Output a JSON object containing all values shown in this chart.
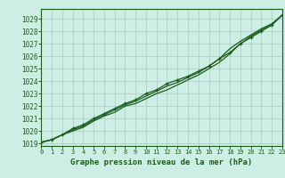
{
  "title": "Graphe pression niveau de la mer (hPa)",
  "background_color": "#cceee4",
  "grid_color": "#b0c8c0",
  "line_color": "#1a5c1a",
  "x_labels": [
    "0",
    "1",
    "2",
    "3",
    "4",
    "5",
    "6",
    "7",
    "8",
    "9",
    "10",
    "11",
    "12",
    "13",
    "14",
    "15",
    "16",
    "17",
    "18",
    "19",
    "20",
    "21",
    "22",
    "23"
  ],
  "x_values": [
    0,
    1,
    2,
    3,
    4,
    5,
    6,
    7,
    8,
    9,
    10,
    11,
    12,
    13,
    14,
    15,
    16,
    17,
    18,
    19,
    20,
    21,
    22,
    23
  ],
  "ylim": [
    1018.8,
    1029.8
  ],
  "xlim": [
    0,
    23
  ],
  "series1": [
    1019.1,
    1019.3,
    1019.7,
    1020.2,
    1020.5,
    1021.0,
    1021.4,
    1021.8,
    1022.2,
    1022.5,
    1023.0,
    1023.3,
    1023.8,
    1024.1,
    1024.4,
    1024.8,
    1025.2,
    1025.8,
    1026.3,
    1027.0,
    1027.5,
    1028.0,
    1028.5,
    1029.3
  ],
  "series2": [
    1019.1,
    1019.3,
    1019.7,
    1020.1,
    1020.4,
    1020.9,
    1021.3,
    1021.7,
    1022.1,
    1022.4,
    1022.8,
    1023.2,
    1023.6,
    1023.9,
    1024.3,
    1024.7,
    1025.2,
    1025.8,
    1026.6,
    1027.2,
    1027.7,
    1028.2,
    1028.6,
    1029.3
  ],
  "series_diverge": [
    1019.1,
    1019.3,
    1019.7,
    1020.0,
    1020.3,
    1020.8,
    1021.2,
    1021.5,
    1022.0,
    1022.2,
    1022.6,
    1023.0,
    1023.3,
    1023.7,
    1024.1,
    1024.5,
    1025.0,
    1025.5,
    1026.2,
    1027.0,
    1027.6,
    1028.1,
    1028.5,
    1029.3
  ],
  "yticks": [
    1019,
    1020,
    1021,
    1022,
    1023,
    1024,
    1025,
    1026,
    1027,
    1028,
    1029
  ],
  "figsize": [
    3.2,
    2.0
  ],
  "dpi": 100
}
